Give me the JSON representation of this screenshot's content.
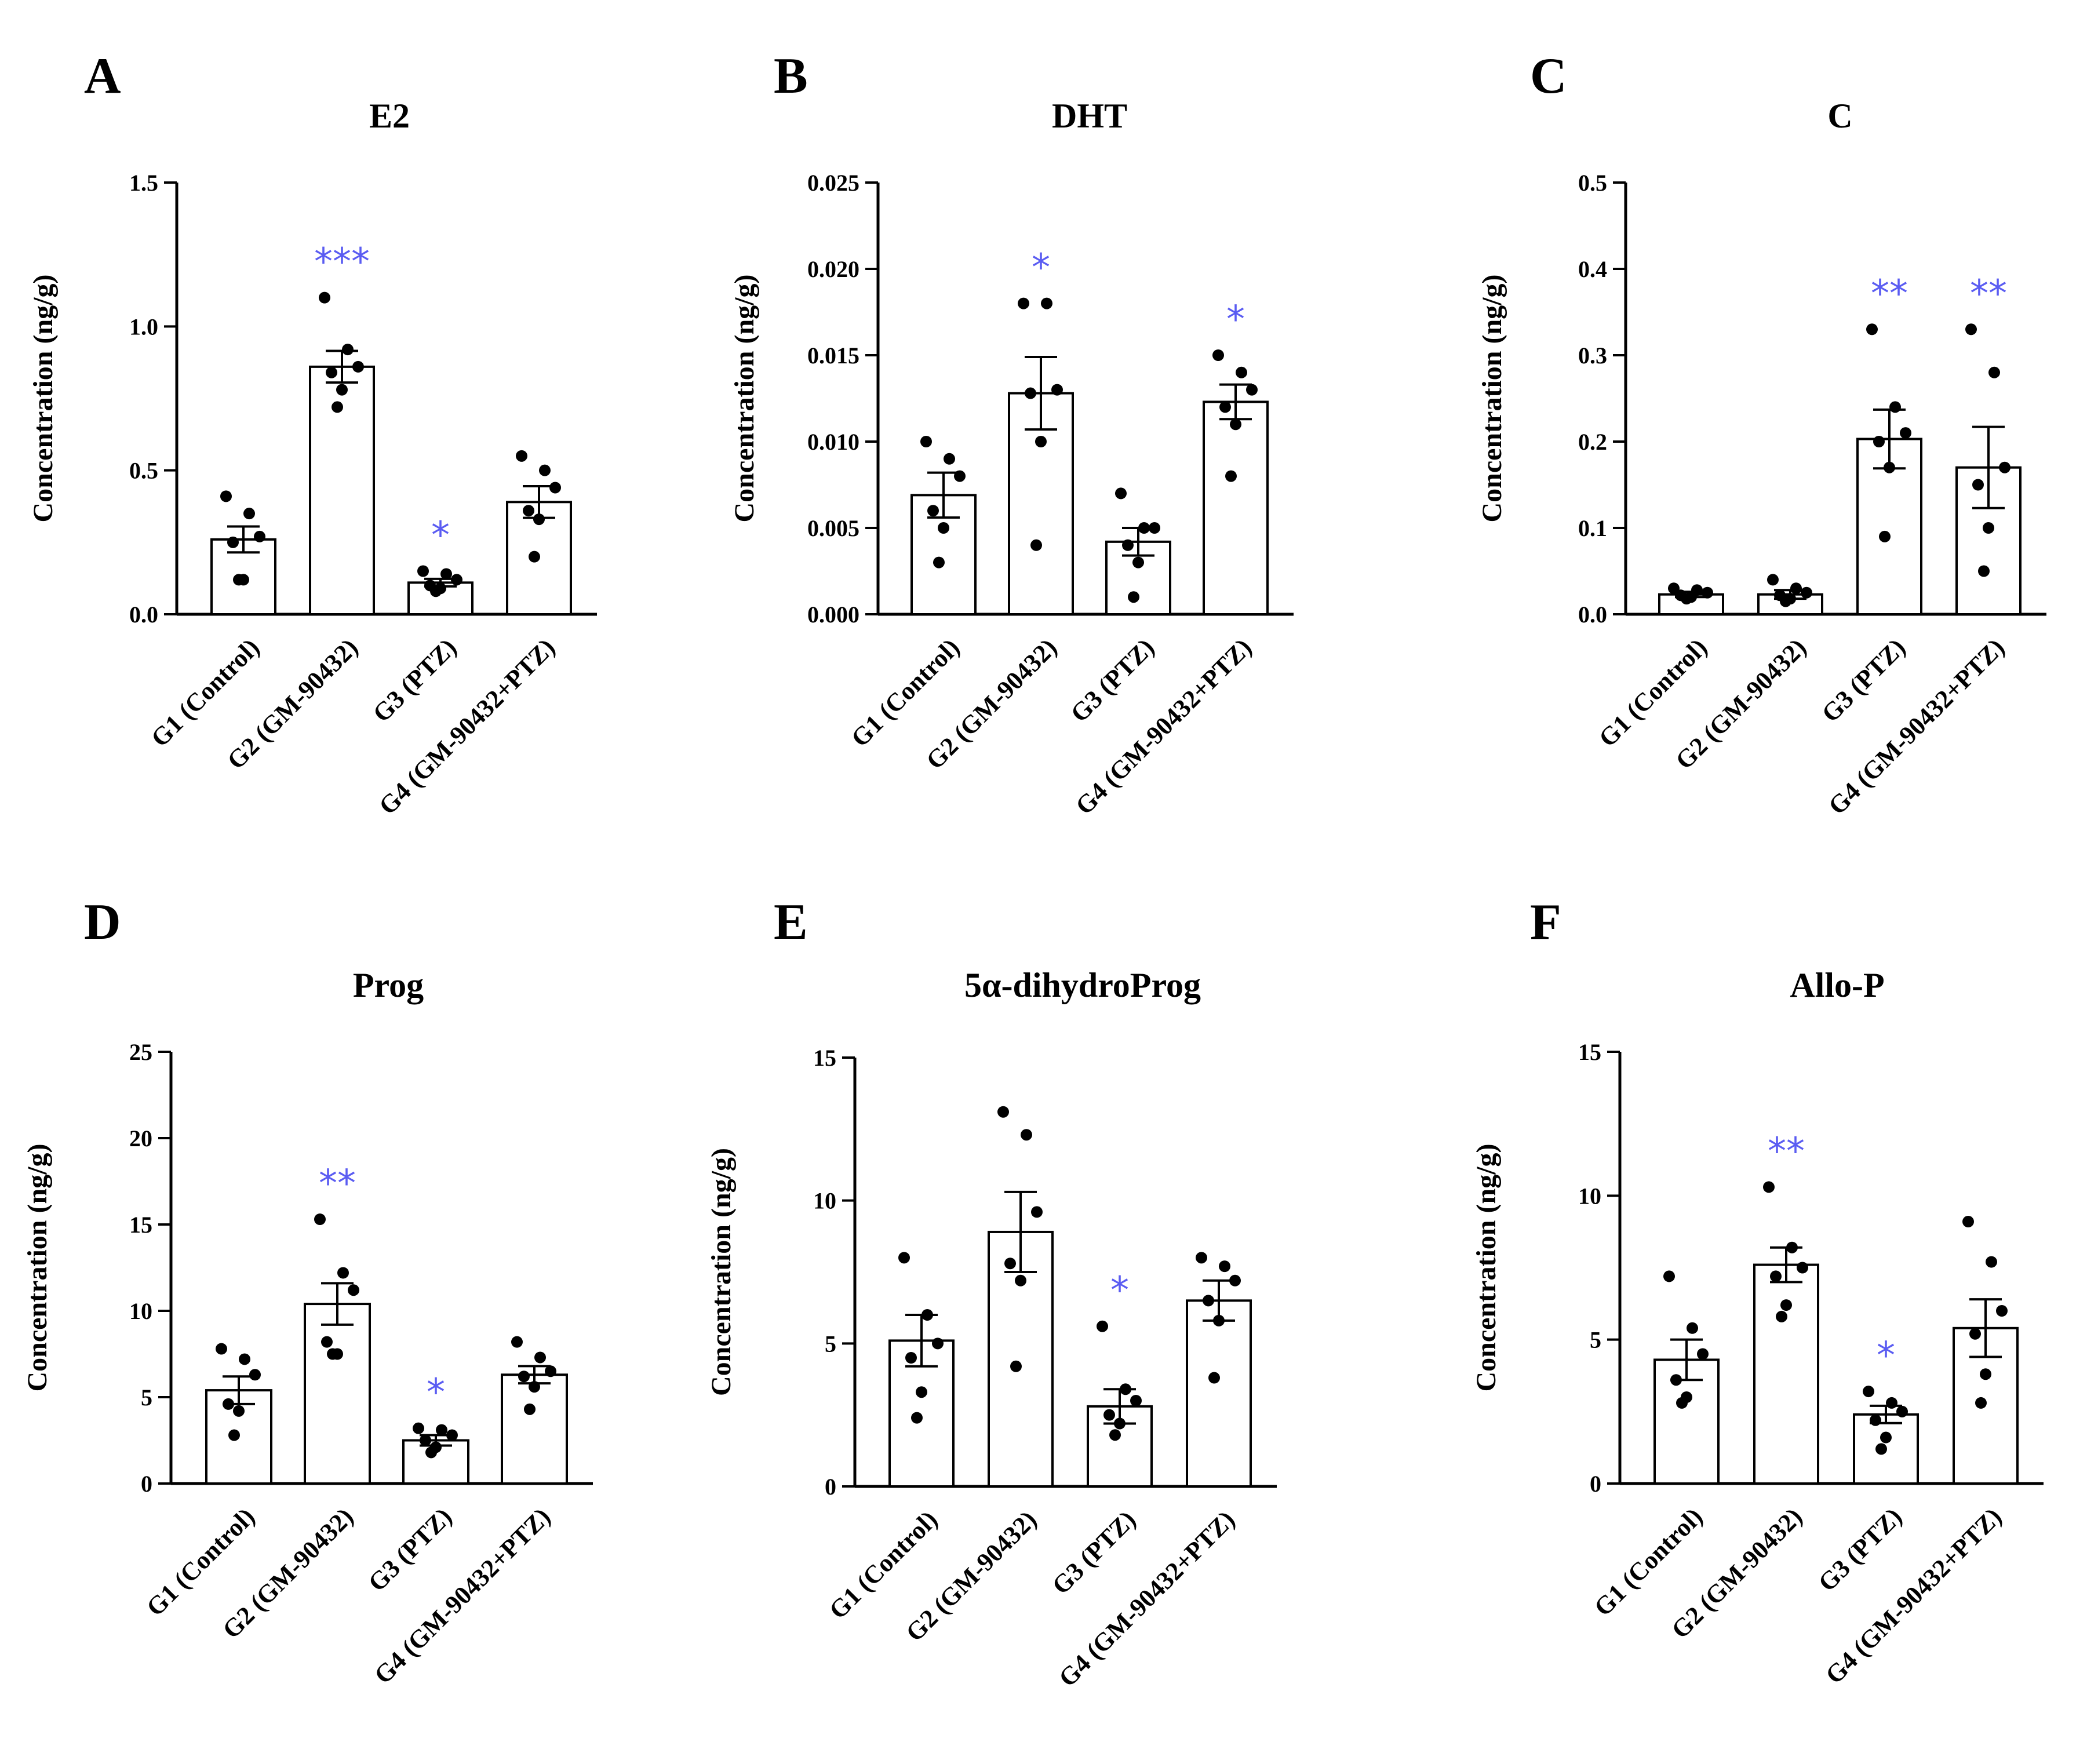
{
  "figure": {
    "sig_color": "#5a5cf2"
  },
  "chart_data": [
    {
      "type": "bar",
      "letter": "A",
      "title": "E2",
      "ylabel": "Concentration  (ng/g)",
      "categories": [
        "G1 (Control)",
        "G2 (GM-90432)",
        "G3 (PTZ)",
        "G4 (GM-90432+PTZ)"
      ],
      "values": [
        0.26,
        0.86,
        0.11,
        0.39
      ],
      "sem": [
        0.045,
        0.055,
        0.013,
        0.055
      ],
      "points": [
        [
          0.41,
          0.35,
          0.27,
          0.25,
          0.12,
          0.12
        ],
        [
          1.1,
          0.92,
          0.86,
          0.84,
          0.78,
          0.72
        ],
        [
          0.15,
          0.14,
          0.12,
          0.1,
          0.09,
          0.08
        ],
        [
          0.55,
          0.5,
          0.44,
          0.36,
          0.33,
          0.2
        ]
      ],
      "significance": [
        "",
        "***",
        "*",
        ""
      ],
      "ylim": [
        0,
        1.5
      ],
      "ticks": [
        0.0,
        0.5,
        1.0,
        1.5
      ],
      "tick_labels": [
        "0.0",
        "0.5",
        "1.0",
        "1.5"
      ]
    },
    {
      "type": "bar",
      "letter": "B",
      "title": "DHT",
      "ylabel": "Concentration  (ng/g)",
      "categories": [
        "G1 (Control)",
        "G2 (GM-90432)",
        "G3 (PTZ)",
        "G4 (GM-90432+PTZ)"
      ],
      "values": [
        0.0069,
        0.0128,
        0.0042,
        0.0123
      ],
      "sem": [
        0.0013,
        0.0021,
        0.0008,
        0.001
      ],
      "points": [
        [
          0.01,
          0.009,
          0.008,
          0.006,
          0.005,
          0.003
        ],
        [
          0.018,
          0.018,
          0.013,
          0.0128,
          0.01,
          0.004
        ],
        [
          0.007,
          0.005,
          0.005,
          0.004,
          0.003,
          0.001
        ],
        [
          0.015,
          0.014,
          0.013,
          0.012,
          0.011,
          0.008
        ]
      ],
      "significance": [
        "",
        "*",
        "",
        "*"
      ],
      "ylim": [
        0,
        0.025
      ],
      "ticks": [
        0.0,
        0.005,
        0.01,
        0.015,
        0.02,
        0.025
      ],
      "tick_labels": [
        "0.000",
        "0.005",
        "0.010",
        "0.015",
        "0.020",
        "0.025"
      ]
    },
    {
      "type": "bar",
      "letter": "C",
      "title": "C",
      "ylabel": "Concentration  (ng/g)",
      "categories": [
        "G1 (Control)",
        "G2 (GM-90432)",
        "G3 (PTZ)",
        "G4 (GM-90432+PTZ)"
      ],
      "values": [
        0.023,
        0.023,
        0.203,
        0.17
      ],
      "sem": [
        0.003,
        0.005,
        0.034,
        0.047
      ],
      "points": [
        [
          0.03,
          0.028,
          0.025,
          0.022,
          0.02,
          0.018
        ],
        [
          0.04,
          0.03,
          0.025,
          0.022,
          0.018,
          0.015
        ],
        [
          0.33,
          0.24,
          0.21,
          0.2,
          0.17,
          0.09
        ],
        [
          0.33,
          0.28,
          0.17,
          0.15,
          0.1,
          0.05
        ]
      ],
      "significance": [
        "",
        "",
        "**",
        "**"
      ],
      "ylim": [
        0,
        0.5
      ],
      "ticks": [
        0.0,
        0.1,
        0.2,
        0.3,
        0.4,
        0.5
      ],
      "tick_labels": [
        "0.0",
        "0.1",
        "0.2",
        "0.3",
        "0.4",
        "0.5"
      ]
    },
    {
      "type": "bar",
      "letter": "D",
      "title": "Prog",
      "ylabel": "Concentration  (ng/g)",
      "categories": [
        "G1 (Control)",
        "G2 (GM-90432)",
        "G3 (PTZ)",
        "G4 (GM-90432+PTZ)"
      ],
      "values": [
        5.4,
        10.4,
        2.5,
        6.3
      ],
      "sem": [
        0.8,
        1.2,
        0.3,
        0.5
      ],
      "points": [
        [
          7.8,
          7.2,
          6.3,
          4.6,
          4.2,
          2.8
        ],
        [
          15.3,
          12.2,
          11.2,
          8.2,
          7.5,
          7.5
        ],
        [
          3.2,
          3.1,
          2.8,
          2.5,
          2.1,
          1.8
        ],
        [
          8.2,
          7.3,
          6.5,
          6.2,
          5.6,
          4.3
        ]
      ],
      "significance": [
        "",
        "**",
        "*",
        ""
      ],
      "ylim": [
        0,
        25
      ],
      "ticks": [
        0,
        5,
        10,
        15,
        20,
        25
      ],
      "tick_labels": [
        "0",
        "5",
        "10",
        "15",
        "20",
        "25"
      ]
    },
    {
      "type": "bar",
      "letter": "E",
      "title": "5α-dihydroProg",
      "ylabel": "Concentration  (ng/g)",
      "categories": [
        "G1 (Control)",
        "G2 (GM-90432)",
        "G3 (PTZ)",
        "G4 (GM-90432+PTZ)"
      ],
      "values": [
        5.1,
        8.9,
        2.8,
        6.5
      ],
      "sem": [
        0.9,
        1.4,
        0.6,
        0.7
      ],
      "points": [
        [
          8.0,
          6.0,
          5.0,
          4.5,
          3.3,
          2.4
        ],
        [
          13.1,
          12.3,
          9.6,
          7.8,
          7.2,
          4.2
        ],
        [
          5.6,
          3.4,
          3.0,
          2.5,
          2.2,
          1.8
        ],
        [
          8.0,
          7.7,
          7.2,
          6.5,
          5.8,
          3.8
        ]
      ],
      "significance": [
        "",
        "",
        "*",
        ""
      ],
      "ylim": [
        0,
        15
      ],
      "ticks": [
        0,
        5,
        10,
        15
      ],
      "tick_labels": [
        "0",
        "5",
        "10",
        "15"
      ]
    },
    {
      "type": "bar",
      "letter": "F",
      "title": "Allo-P",
      "ylabel": "Concentration  (ng/g)",
      "categories": [
        "G1 (Control)",
        "G2 (GM-90432)",
        "G3 (PTZ)",
        "G4 (GM-90432+PTZ)"
      ],
      "values": [
        4.3,
        7.6,
        2.4,
        5.4
      ],
      "sem": [
        0.7,
        0.6,
        0.3,
        1.0
      ],
      "points": [
        [
          7.2,
          5.4,
          4.5,
          3.6,
          3.0,
          2.8
        ],
        [
          10.3,
          8.2,
          7.5,
          7.2,
          6.2,
          5.8
        ],
        [
          3.2,
          2.8,
          2.5,
          2.2,
          1.6,
          1.2
        ],
        [
          9.1,
          7.7,
          6.0,
          5.2,
          3.8,
          2.8
        ]
      ],
      "significance": [
        "",
        "**",
        "*",
        ""
      ],
      "ylim": [
        0,
        15
      ],
      "ticks": [
        0,
        5,
        10,
        15
      ],
      "tick_labels": [
        "0",
        "5",
        "10",
        "15"
      ]
    }
  ]
}
